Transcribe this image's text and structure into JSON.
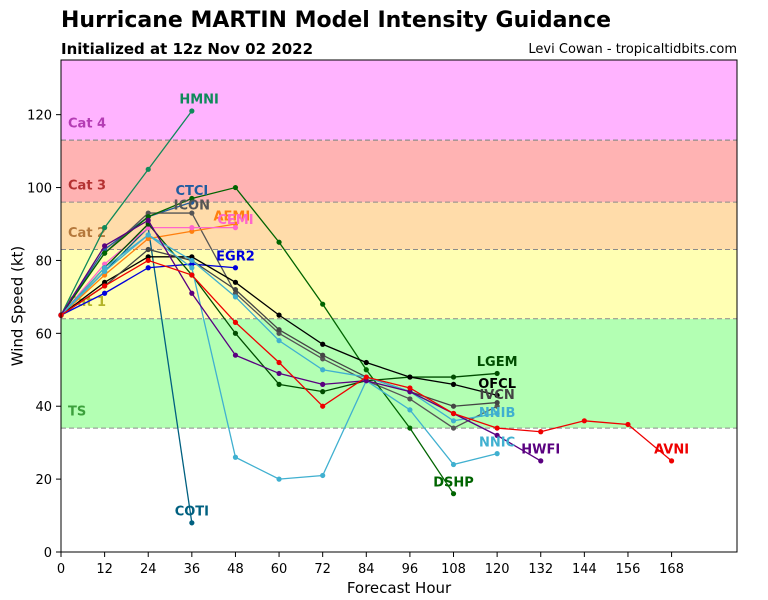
{
  "header": {
    "title": "Hurricane MARTIN Model Intensity Guidance",
    "subtitle": "Initialized at 12z Nov 02 2022",
    "credit": "Levi Cowan - tropicaltidbits.com"
  },
  "chart_data": {
    "type": "line",
    "xlabel": "Forecast Hour",
    "ylabel": "Wind Speed (kt)",
    "xlim": [
      0,
      186
    ],
    "ylim": [
      0,
      135
    ],
    "xticks": [
      0,
      12,
      24,
      36,
      48,
      60,
      72,
      84,
      96,
      108,
      120,
      132,
      144,
      156,
      168
    ],
    "yticks": [
      0,
      20,
      40,
      60,
      80,
      100,
      120
    ],
    "grid": false,
    "bands": [
      {
        "name": "TS",
        "from": 34,
        "to": 64,
        "color": "#b3ffb3",
        "label_color": "#3ca03c"
      },
      {
        "name": "Cat 1",
        "from": 64,
        "to": 83,
        "color": "#ffffb3",
        "label_color": "#b4b428"
      },
      {
        "name": "Cat 2",
        "from": 83,
        "to": 96,
        "color": "#ffdcaa",
        "label_color": "#b4783c"
      },
      {
        "name": "Cat 3",
        "from": 96,
        "to": 113,
        "color": "#ffb3b3",
        "label_color": "#b43232"
      },
      {
        "name": "Cat 4",
        "from": 113,
        "to": 135,
        "color": "#ffb3ff",
        "label_color": "#b43cb4"
      }
    ],
    "series": [
      {
        "name": "HMNI",
        "color": "#0f8a5a",
        "x": [
          0,
          12,
          24,
          36
        ],
        "y": [
          65,
          89,
          105,
          121
        ],
        "label_at": [
          38,
          123
        ]
      },
      {
        "name": "COTI",
        "color": "#006080",
        "x": [
          0,
          12,
          24,
          36
        ],
        "y": [
          65,
          77,
          89,
          8
        ],
        "label_at": [
          36,
          10
        ]
      },
      {
        "name": "CTCI",
        "color": "#1f5ca0",
        "x": [
          0,
          12,
          24,
          36
        ],
        "y": [
          65,
          83,
          92,
          96
        ],
        "label_at": [
          36,
          98
        ]
      },
      {
        "name": "ICON",
        "color": "#555555",
        "x": [
          0,
          12,
          24,
          36,
          48,
          60,
          72,
          84,
          96,
          108,
          120
        ],
        "y": [
          65,
          82,
          93,
          93,
          71,
          60,
          53,
          47,
          42,
          34,
          40
        ],
        "label_at": [
          36,
          94
        ]
      },
      {
        "name": "AEMI",
        "color": "#ff7f0e",
        "x": [
          0,
          12,
          24,
          36,
          48
        ],
        "y": [
          65,
          76,
          86,
          88,
          90
        ],
        "label_at": [
          47,
          91
        ]
      },
      {
        "name": "CEMI",
        "color": "#ff66cc",
        "x": [
          0,
          12,
          24,
          36,
          48
        ],
        "y": [
          65,
          79,
          89,
          89,
          89
        ],
        "label_at": [
          48,
          90
        ]
      },
      {
        "name": "EGR2",
        "color": "#0000dd",
        "x": [
          0,
          12,
          24,
          36,
          48
        ],
        "y": [
          65,
          71,
          78,
          79,
          78
        ],
        "label_at": [
          48,
          80
        ]
      },
      {
        "name": "DSHP",
        "color": "#006400",
        "x": [
          0,
          12,
          24,
          36,
          48,
          60,
          72,
          84,
          96,
          108
        ],
        "y": [
          65,
          82,
          92,
          97,
          100,
          85,
          68,
          50,
          34,
          16
        ],
        "label_at": [
          108,
          18
        ]
      },
      {
        "name": "LGEM",
        "color": "#004d00",
        "x": [
          0,
          12,
          24,
          36,
          48,
          60,
          72,
          84,
          96,
          108,
          120
        ],
        "y": [
          65,
          78,
          90,
          76,
          60,
          46,
          44,
          47,
          48,
          48,
          49
        ],
        "label_at": [
          120,
          51
        ]
      },
      {
        "name": "OFCL",
        "color": "#000000",
        "x": [
          0,
          12,
          24,
          36,
          48,
          60,
          72,
          84,
          96,
          108,
          120
        ],
        "y": [
          65,
          74,
          81,
          81,
          74,
          65,
          57,
          52,
          48,
          46,
          43
        ],
        "label_at": [
          120,
          45
        ]
      },
      {
        "name": "IVCN",
        "color": "#444444",
        "x": [
          0,
          12,
          24,
          36,
          48,
          60,
          72,
          84,
          96,
          108,
          120
        ],
        "y": [
          65,
          73,
          83,
          80,
          72,
          61,
          54,
          48,
          44,
          40,
          41
        ],
        "label_at": [
          120,
          42
        ]
      },
      {
        "name": "NNIB",
        "color": "#40b0d0",
        "x": [
          0,
          12,
          24,
          36,
          48,
          60,
          72,
          84,
          96,
          108,
          120
        ],
        "y": [
          65,
          77,
          87,
          80,
          70,
          58,
          50,
          48,
          44,
          36,
          38
        ],
        "label_at": [
          120,
          37
        ]
      },
      {
        "name": "NNIC",
        "color": "#40b0d0",
        "x": [
          0,
          12,
          24,
          36,
          48,
          60,
          72,
          84,
          96,
          108,
          120
        ],
        "y": [
          65,
          78,
          87,
          78,
          26,
          20,
          21,
          47,
          39,
          24,
          27
        ],
        "label_at": [
          120,
          29
        ]
      },
      {
        "name": "HWFI",
        "color": "#5a0080",
        "x": [
          0,
          12,
          24,
          36,
          48,
          60,
          72,
          84,
          96,
          108,
          120,
          132
        ],
        "y": [
          65,
          84,
          91,
          71,
          54,
          49,
          46,
          47,
          44,
          38,
          32,
          25
        ],
        "label_at": [
          132,
          27
        ]
      },
      {
        "name": "AVNI",
        "color": "#ee0000",
        "x": [
          0,
          12,
          24,
          36,
          48,
          60,
          72,
          84,
          96,
          108,
          120,
          132,
          144,
          156,
          168
        ],
        "y": [
          65,
          73,
          80,
          76,
          63,
          52,
          40,
          48,
          45,
          38,
          34,
          33,
          36,
          35,
          25
        ],
        "label_at": [
          168,
          27
        ]
      }
    ]
  }
}
